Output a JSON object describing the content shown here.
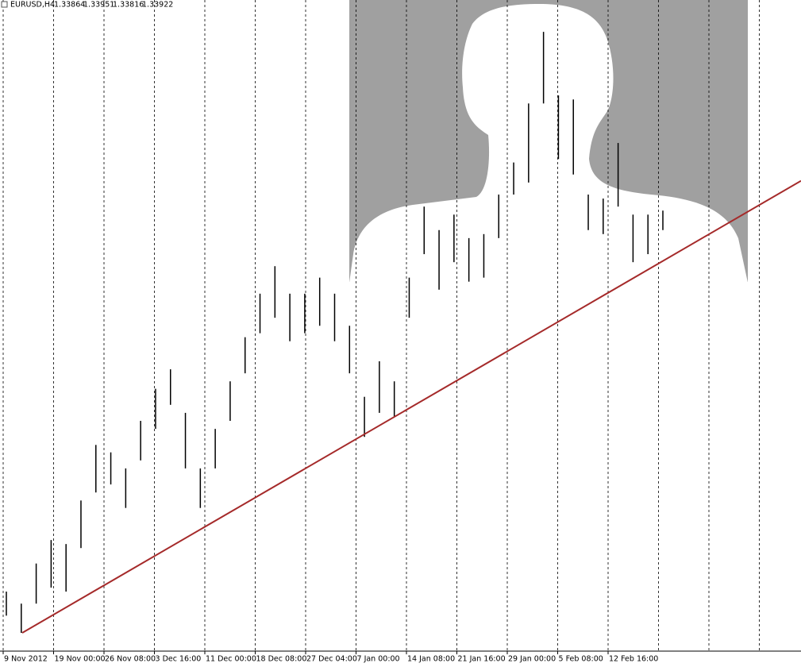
{
  "header": {
    "symbol": "EURUSD,H4",
    "ohlc": [
      1.33864,
      1.33951,
      1.33816,
      1.33922
    ]
  },
  "chart_data": {
    "type": "hilo",
    "color": "#000000",
    "categories": [
      null,
      null,
      null,
      null,
      null,
      null,
      null,
      null,
      null,
      null,
      null,
      null,
      null,
      null,
      null,
      null,
      null,
      null,
      null,
      null,
      null,
      null,
      null,
      null,
      null,
      null,
      null,
      null,
      null,
      null,
      null,
      null,
      null,
      null,
      null,
      null,
      null,
      null,
      null,
      null,
      null,
      null,
      null,
      null,
      null
    ],
    "highs": [
      1.2733,
      1.2712,
      1.2782,
      1.2823,
      1.2816,
      1.2892,
      1.2989,
      1.2976,
      1.2948,
      1.3031,
      1.3087,
      1.3121,
      1.3045,
      1.2948,
      1.3017,
      1.31,
      1.3177,
      1.3253,
      1.3301,
      1.3253,
      1.3253,
      1.3281,
      1.3253,
      1.3197,
      1.3073,
      1.3135,
      1.31,
      1.3281,
      1.3405,
      1.3364,
      1.3391,
      1.335,
      1.3357,
      1.3426,
      1.3482,
      1.3585,
      1.371,
      1.3599,
      1.3592,
      1.3426,
      1.3419,
      1.3516,
      1.3391,
      1.3391,
      1.3398
    ],
    "lows": [
      1.2691,
      1.2661,
      1.2712,
      1.274,
      1.2733,
      1.2809,
      1.2906,
      1.292,
      1.2879,
      1.2962,
      1.3017,
      1.3059,
      1.2948,
      1.2879,
      1.2948,
      1.3031,
      1.3114,
      1.3184,
      1.3211,
      1.317,
      1.3184,
      1.3197,
      1.317,
      1.3114,
      1.3003,
      1.3045,
      1.3038,
      1.3211,
      1.3322,
      1.326,
      1.3308,
      1.3274,
      1.3281,
      1.335,
      1.3426,
      1.3447,
      1.3585,
      1.3488,
      1.3461,
      1.3364,
      1.3357,
      1.3405,
      1.3308,
      1.3322,
      1.3364
    ],
    "ylim": [
      1.26291,
      1.37656
    ],
    "trendline": {
      "color": "#a52a2a",
      "values": [
        1.2661,
        1.345
      ]
    },
    "x_labels": [
      "9 Nov 2012",
      "19 Nov 00:00",
      "26 Nov 08:00",
      "3 Dec 16:00",
      "11 Dec 00:00",
      "18 Dec 08:00",
      "27 Dec 04:00",
      "7 Jan 00:00",
      "14 Jan 08:00",
      "21 Jan 16:00",
      "29 Jan 00:00",
      "5 Feb 08:00",
      "12 Feb 16:00"
    ],
    "grid": true
  }
}
